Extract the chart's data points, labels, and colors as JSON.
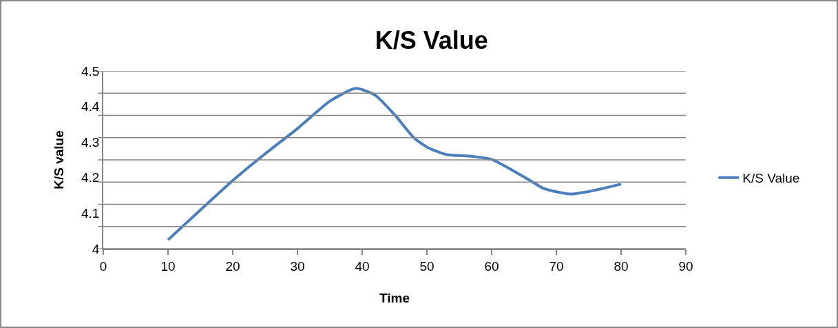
{
  "chart_data": {
    "type": "line",
    "title": "K/S Value",
    "xlabel": "Time",
    "ylabel": "K/S value",
    "series": [
      {
        "name": "K/S Value",
        "color": "#4a7ebb",
        "x": [
          10,
          15,
          20,
          25,
          30,
          35,
          39,
          42,
          45,
          48,
          50,
          53,
          57,
          60,
          65,
          68,
          72,
          75,
          80
        ],
        "values": [
          4.025,
          4.109,
          4.192,
          4.267,
          4.338,
          4.415,
          4.451,
          4.432,
          4.377,
          4.312,
          4.286,
          4.265,
          4.26,
          4.251,
          4.202,
          4.17,
          4.154,
          4.161,
          4.182
        ]
      }
    ],
    "xlim": [
      0,
      90
    ],
    "xticks": [
      0,
      10,
      20,
      30,
      40,
      50,
      60,
      70,
      80,
      90
    ],
    "ylim": [
      4,
      4.5
    ],
    "yticks": [
      {
        "value": 4,
        "label": "4"
      },
      {
        "value": 4.0625,
        "label": null
      },
      {
        "value": 4.1,
        "label": "4.1"
      },
      {
        "value": 4.125,
        "label": null
      },
      {
        "value": 4.1875,
        "label": null
      },
      {
        "value": 4.2,
        "label": "4.2"
      },
      {
        "value": 4.25,
        "label": null
      },
      {
        "value": 4.3,
        "label": "4.3"
      },
      {
        "value": 4.3125,
        "label": null
      },
      {
        "value": 4.375,
        "label": null
      },
      {
        "value": 4.4,
        "label": "4.4"
      },
      {
        "value": 4.4375,
        "label": null
      },
      {
        "value": 4.5,
        "label": "4.5"
      }
    ],
    "grid": "y",
    "legend": "right",
    "marker": "none",
    "line_style": "solid"
  }
}
